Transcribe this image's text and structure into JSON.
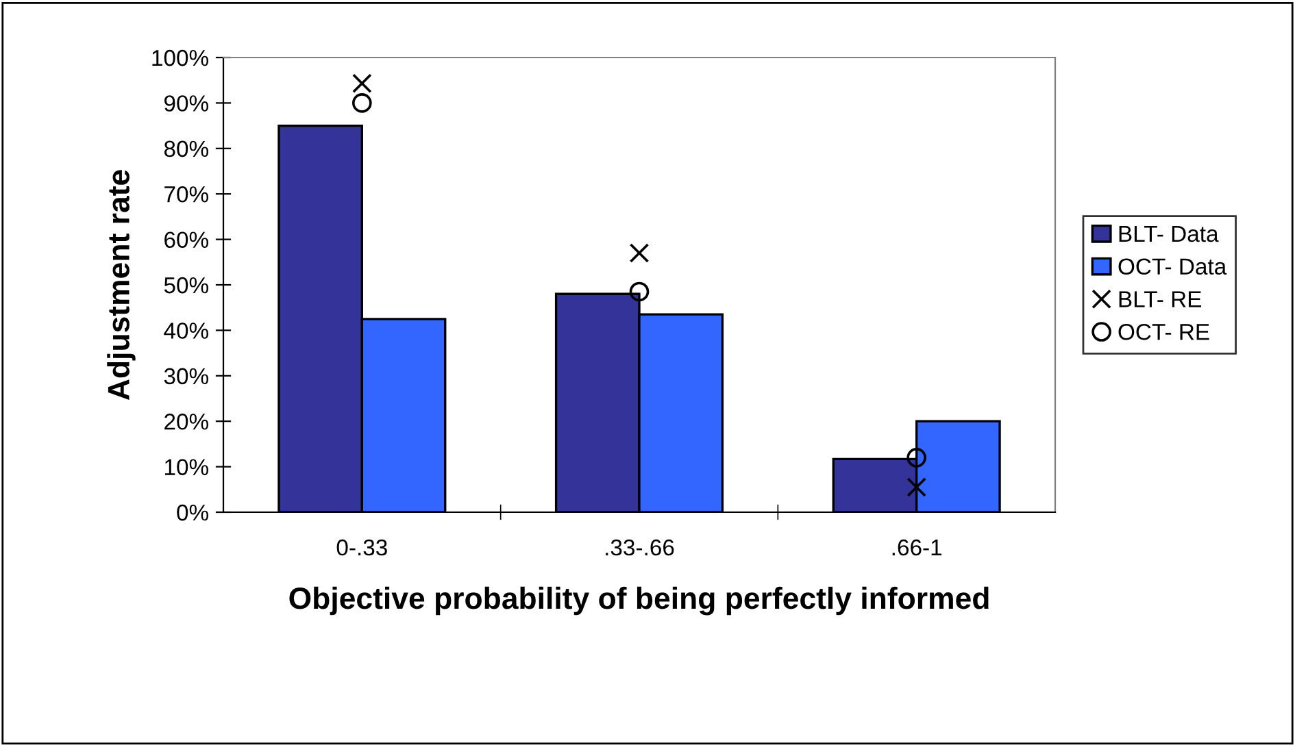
{
  "chart_data": {
    "type": "bar",
    "xlabel": "Objective probability of being perfectly informed",
    "ylabel": "Adjustment rate",
    "categories": [
      "0-.33",
      ".33-.66",
      ".66-1"
    ],
    "series": [
      {
        "name": "BLT- Data",
        "color": "#333399",
        "values": [
          0.85,
          0.48,
          0.117
        ]
      },
      {
        "name": "OCT- Data",
        "color": "#3366ff",
        "values": [
          0.425,
          0.435,
          0.2
        ]
      },
      {
        "name": "BLT- RE",
        "type": "scatter",
        "marker": "cross",
        "color": "#000000",
        "x": [
          "0-.33",
          ".33-.66",
          ".66-1"
        ],
        "values": [
          0.943,
          0.57,
          0.055
        ]
      },
      {
        "name": "OCT- RE",
        "type": "scatter",
        "marker": "circle",
        "color": "#000000",
        "x": [
          "0-.33",
          ".33-.66",
          ".66-1"
        ],
        "values": [
          0.9,
          0.485,
          0.12
        ]
      }
    ],
    "ylim": [
      0,
      1
    ],
    "yticks": [
      {
        "value": 0,
        "label": "0%"
      },
      {
        "value": 0.1,
        "label": "10%"
      },
      {
        "value": 0.2,
        "label": "20%"
      },
      {
        "value": 0.3,
        "label": "30%"
      },
      {
        "value": 0.4,
        "label": "40%"
      },
      {
        "value": 0.5,
        "label": "50%"
      },
      {
        "value": 0.6,
        "label": "60%"
      },
      {
        "value": 0.7,
        "label": "70%"
      },
      {
        "value": 0.8,
        "label": "80%"
      },
      {
        "value": 0.9,
        "label": "90%"
      },
      {
        "value": 1.0,
        "label": "100%"
      }
    ],
    "grid": false,
    "legend": "right"
  }
}
